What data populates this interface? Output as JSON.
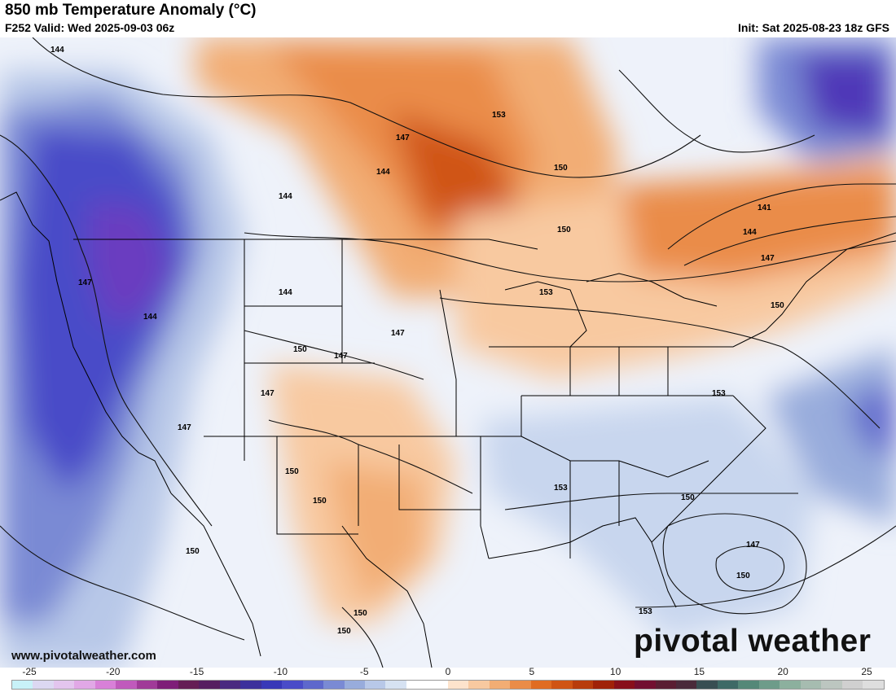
{
  "header": {
    "title": "850 mb Temperature Anomaly (°C)",
    "valid": "F252 Valid: Wed 2025-09-03 06z",
    "init": "Init: Sat 2025-08-23 18z GFS"
  },
  "footer": {
    "url": "www.pivotalweather.com",
    "brand": "pivotal weather"
  },
  "colorbar": {
    "tick_labels": [
      "-25",
      "-20",
      "-15",
      "-10",
      "-5",
      "0",
      "5",
      "10",
      "15",
      "20",
      "25"
    ],
    "colors": [
      "#c8f2f8",
      "#dcd8f2",
      "#e3c5ee",
      "#e1a8e6",
      "#d880d8",
      "#c05abc",
      "#a03a98",
      "#7e1e78",
      "#651e55",
      "#561e60",
      "#4a2a80",
      "#3c309c",
      "#3838b8",
      "#4a4cc8",
      "#5e68cc",
      "#7a8ad4",
      "#98acdc",
      "#b8c8e8",
      "#d6e2f2",
      "#ffffff",
      "#ffffff",
      "#fde3cc",
      "#f8c9a0",
      "#f2ad74",
      "#ea8c48",
      "#e06c22",
      "#d05414",
      "#b83c0c",
      "#a02208",
      "#88101a",
      "#721030",
      "#5a1e32",
      "#4a2a3a",
      "#384e52",
      "#3e6a66",
      "#548878",
      "#6e9c8a",
      "#8cb09e",
      "#a6bcb0",
      "#bcc6c0",
      "#d0d0d0",
      "#dedede"
    ]
  },
  "map": {
    "contour_labels": [
      "144",
      "144",
      "147",
      "144",
      "153",
      "150",
      "141",
      "144",
      "147",
      "150",
      "144",
      "147",
      "150",
      "153",
      "144",
      "147",
      "150",
      "147",
      "147",
      "147",
      "150",
      "150",
      "153",
      "150",
      "147",
      "153",
      "150",
      "150",
      "150",
      "150",
      "153"
    ]
  }
}
